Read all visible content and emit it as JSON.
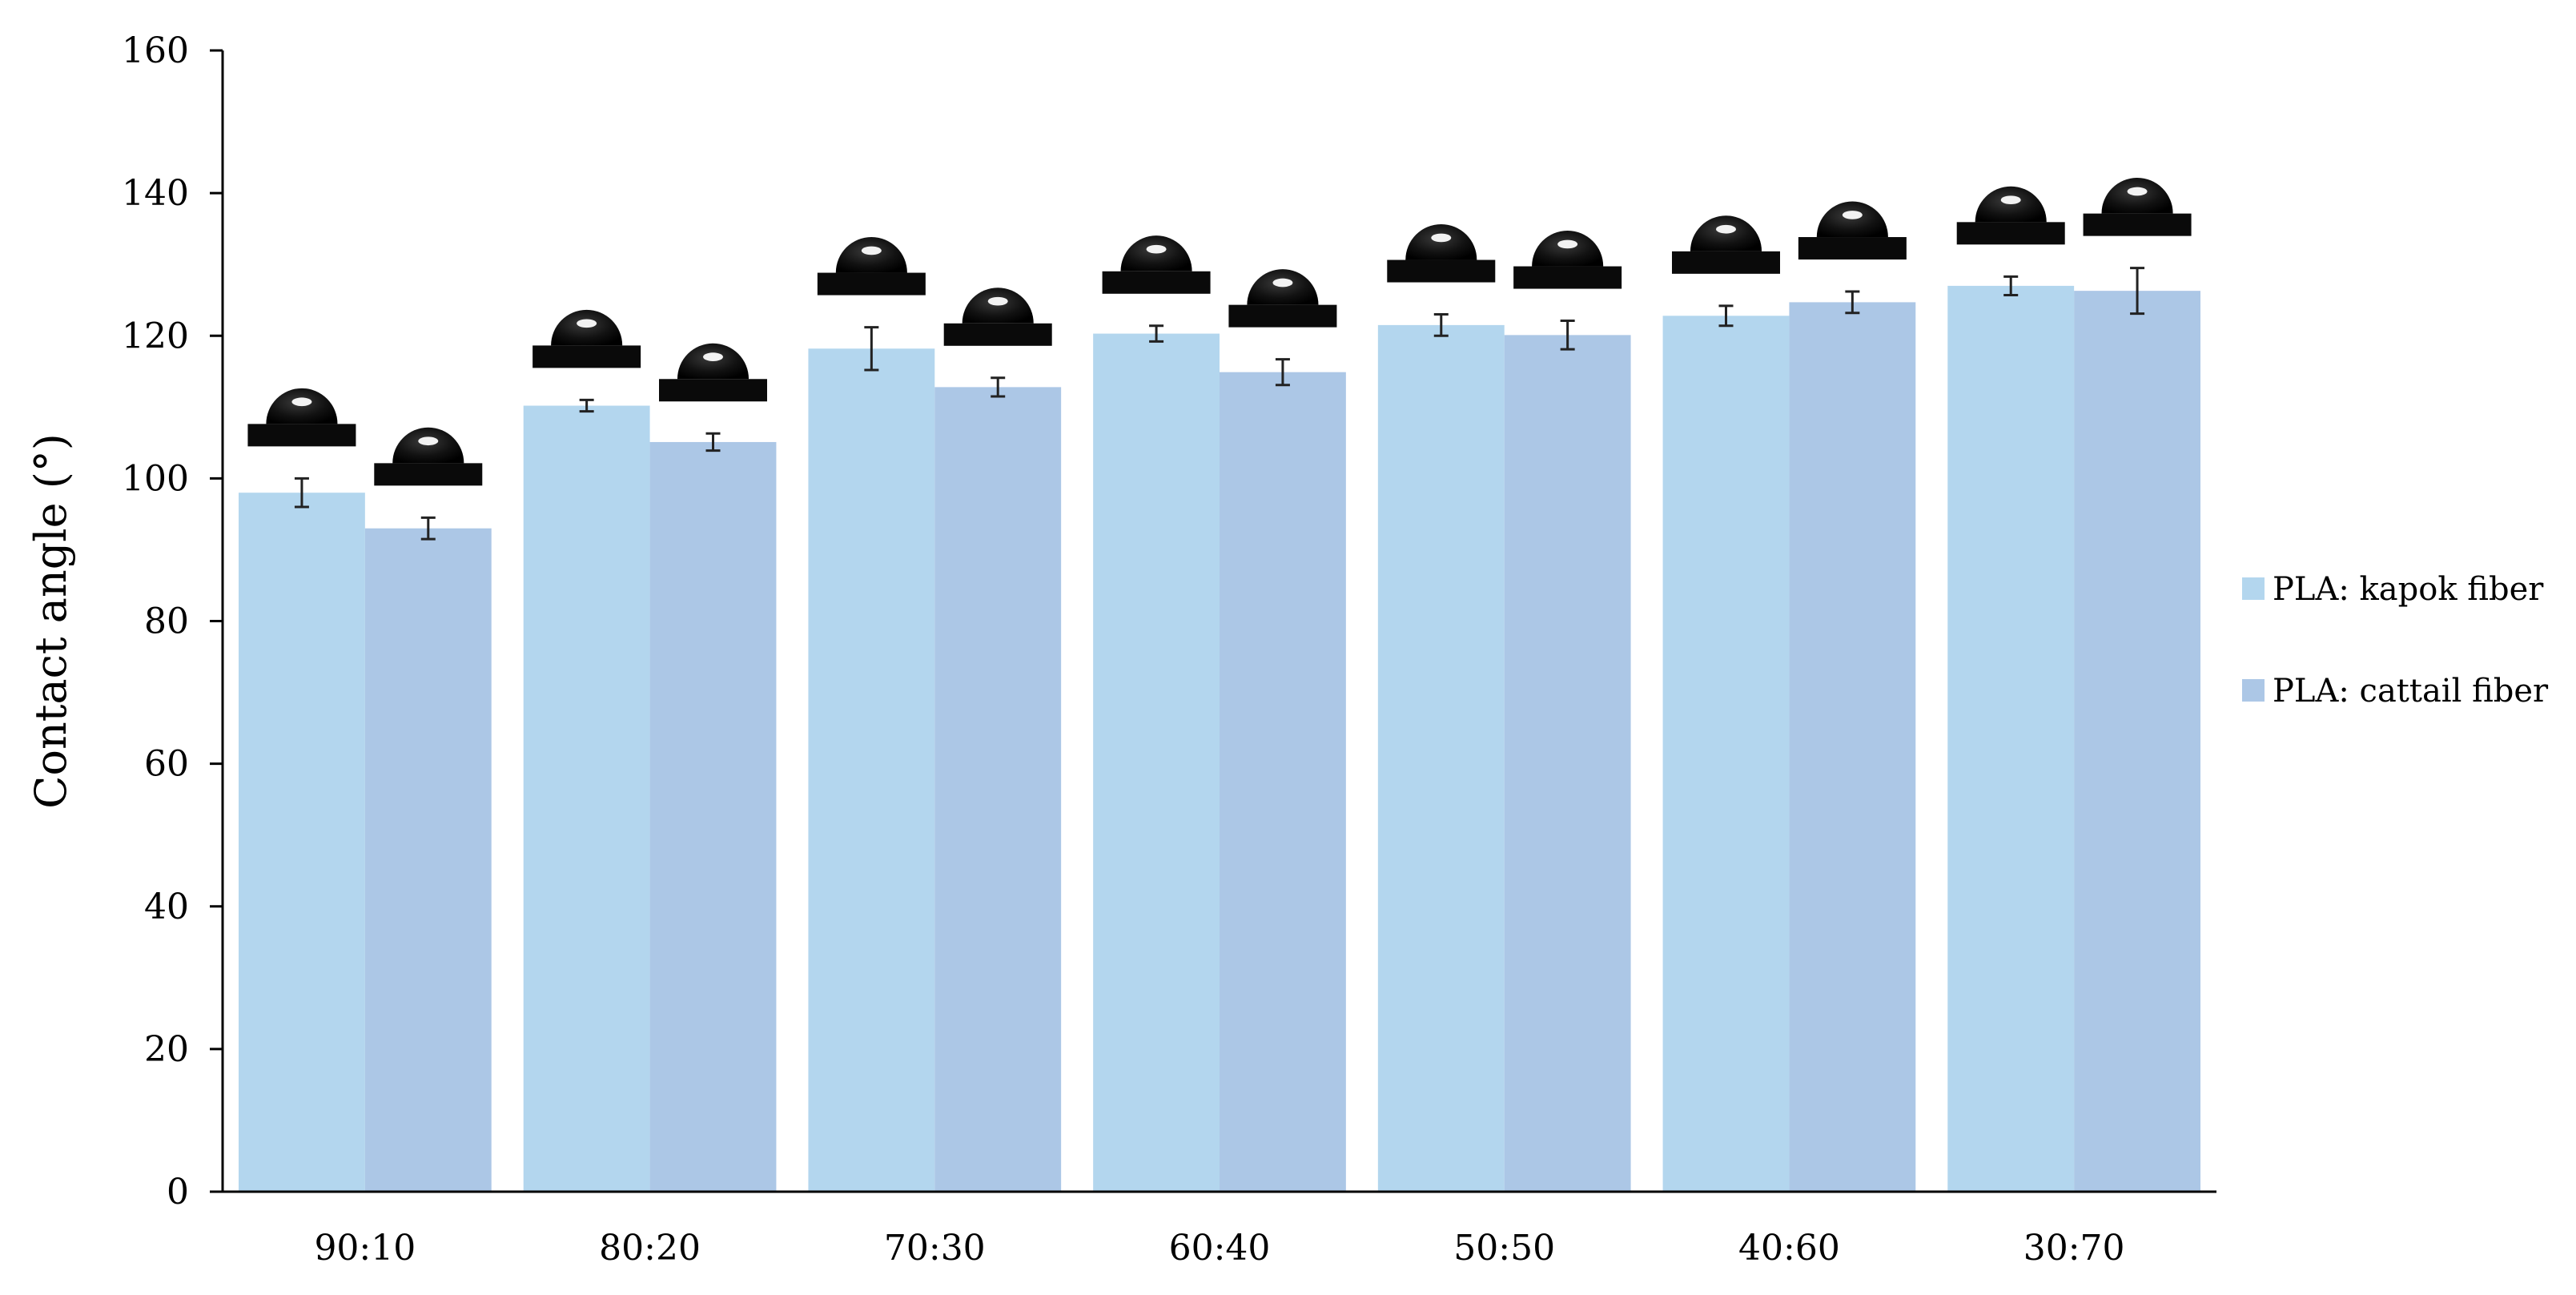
{
  "chart_data": {
    "type": "bar",
    "title": "",
    "xlabel": "",
    "ylabel": "Contact angle (°)",
    "ylim": [
      0,
      160
    ],
    "yticks": [
      0,
      20,
      40,
      60,
      80,
      100,
      120,
      140,
      160
    ],
    "categories": [
      "90:10",
      "80:20",
      "70:30",
      "60:40",
      "50:50",
      "40:60",
      "30:70"
    ],
    "series": [
      {
        "name": "PLA: kapok fiber",
        "color": "#b3d6ee",
        "values": [
          98.0,
          110.2,
          118.2,
          120.3,
          121.5,
          122.8,
          127.0
        ],
        "errors": [
          2.0,
          0.8,
          3.0,
          1.1,
          1.5,
          1.4,
          1.3
        ]
      },
      {
        "name": "PLA: cattail fiber",
        "color": "#acc7e6",
        "values": [
          93.0,
          105.1,
          112.8,
          114.9,
          120.1,
          124.7,
          126.3
        ],
        "errors": [
          1.5,
          1.2,
          1.3,
          1.8,
          2.0,
          1.5,
          3.2
        ]
      }
    ],
    "grid": false,
    "legend_position": "right",
    "annotations": "droplet contact-angle photographs above each bar"
  }
}
